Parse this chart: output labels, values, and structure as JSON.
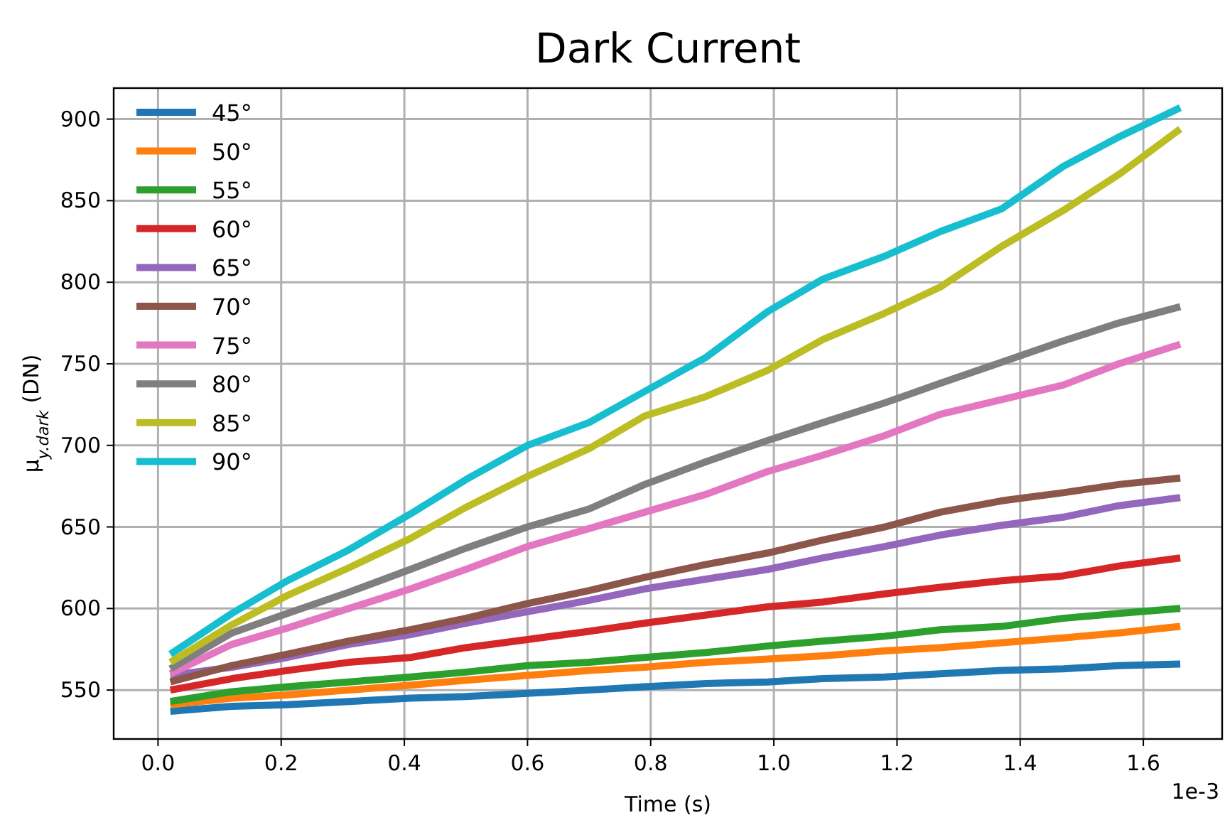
{
  "chart_data": {
    "type": "line",
    "title": "Dark Current",
    "xlabel": "Time (s)",
    "ylabel": "μ$_{y.dark}$ (DN)",
    "annotations": [
      "1e-3"
    ],
    "x": [
      0.02,
      0.12,
      0.21,
      0.31,
      0.41,
      0.5,
      0.6,
      0.7,
      0.79,
      0.89,
      0.99,
      1.08,
      1.18,
      1.27,
      1.37,
      1.47,
      1.56,
      1.66
    ],
    "series": [
      {
        "name": "45°",
        "color": "#1f77b4",
        "values": [
          537,
          540,
          541,
          543,
          545,
          546,
          548,
          550,
          552,
          554,
          555,
          557,
          558,
          560,
          562,
          563,
          565,
          566
        ]
      },
      {
        "name": "50°",
        "color": "#ff7f0e",
        "values": [
          541,
          545,
          547,
          550,
          553,
          556,
          559,
          562,
          564,
          567,
          569,
          571,
          574,
          576,
          579,
          582,
          585,
          589
        ]
      },
      {
        "name": "55°",
        "color": "#2ca02c",
        "values": [
          543,
          549,
          552,
          555,
          558,
          561,
          565,
          567,
          570,
          573,
          577,
          580,
          583,
          587,
          589,
          594,
          597,
          600
        ]
      },
      {
        "name": "60°",
        "color": "#d62728",
        "values": [
          550,
          557,
          562,
          567,
          570,
          576,
          581,
          586,
          591,
          596,
          601,
          604,
          609,
          613,
          617,
          620,
          626,
          631
        ]
      },
      {
        "name": "65°",
        "color": "#9467bd",
        "values": [
          559,
          564,
          570,
          578,
          584,
          591,
          598,
          605,
          612,
          618,
          624,
          631,
          638,
          645,
          651,
          656,
          663,
          668
        ]
      },
      {
        "name": "70°",
        "color": "#8c564b",
        "values": [
          555,
          565,
          572,
          580,
          587,
          594,
          603,
          611,
          619,
          627,
          634,
          642,
          650,
          659,
          666,
          671,
          676,
          680
        ]
      },
      {
        "name": "75°",
        "color": "#e377c2",
        "values": [
          560,
          578,
          588,
          600,
          612,
          624,
          638,
          649,
          659,
          670,
          684,
          694,
          706,
          719,
          728,
          737,
          750,
          762
        ]
      },
      {
        "name": "80°",
        "color": "#7f7f7f",
        "values": [
          563,
          585,
          597,
          610,
          624,
          637,
          650,
          661,
          676,
          690,
          703,
          714,
          726,
          738,
          751,
          764,
          775,
          785
        ]
      },
      {
        "name": "85°",
        "color": "#bcbd22",
        "values": [
          567,
          590,
          608,
          625,
          643,
          662,
          681,
          698,
          718,
          730,
          746,
          765,
          781,
          797,
          822,
          844,
          866,
          894
        ]
      },
      {
        "name": "90°",
        "color": "#17becf",
        "values": [
          572,
          597,
          617,
          636,
          658,
          679,
          700,
          714,
          733,
          754,
          782,
          802,
          816,
          831,
          845,
          871,
          889,
          907
        ]
      }
    ],
    "xlim": [
      -0.072,
      1.728
    ],
    "ylim": [
      520,
      919
    ],
    "xticks": [
      {
        "value": 0,
        "label": "0.0"
      },
      {
        "value": 0.2,
        "label": "0.2"
      },
      {
        "value": 0.4,
        "label": "0.4"
      },
      {
        "value": 0.6,
        "label": "0.6"
      },
      {
        "value": 0.8,
        "label": "0.8"
      },
      {
        "value": 1,
        "label": "1.0"
      },
      {
        "value": 1.2,
        "label": "1.2"
      },
      {
        "value": 1.4,
        "label": "1.4"
      },
      {
        "value": 1.6,
        "label": "1.6"
      }
    ],
    "yticks": [
      550,
      600,
      650,
      700,
      750,
      800,
      850,
      900
    ],
    "grid": true,
    "legend": "top left",
    "line_style": "solid",
    "marker": "none"
  }
}
